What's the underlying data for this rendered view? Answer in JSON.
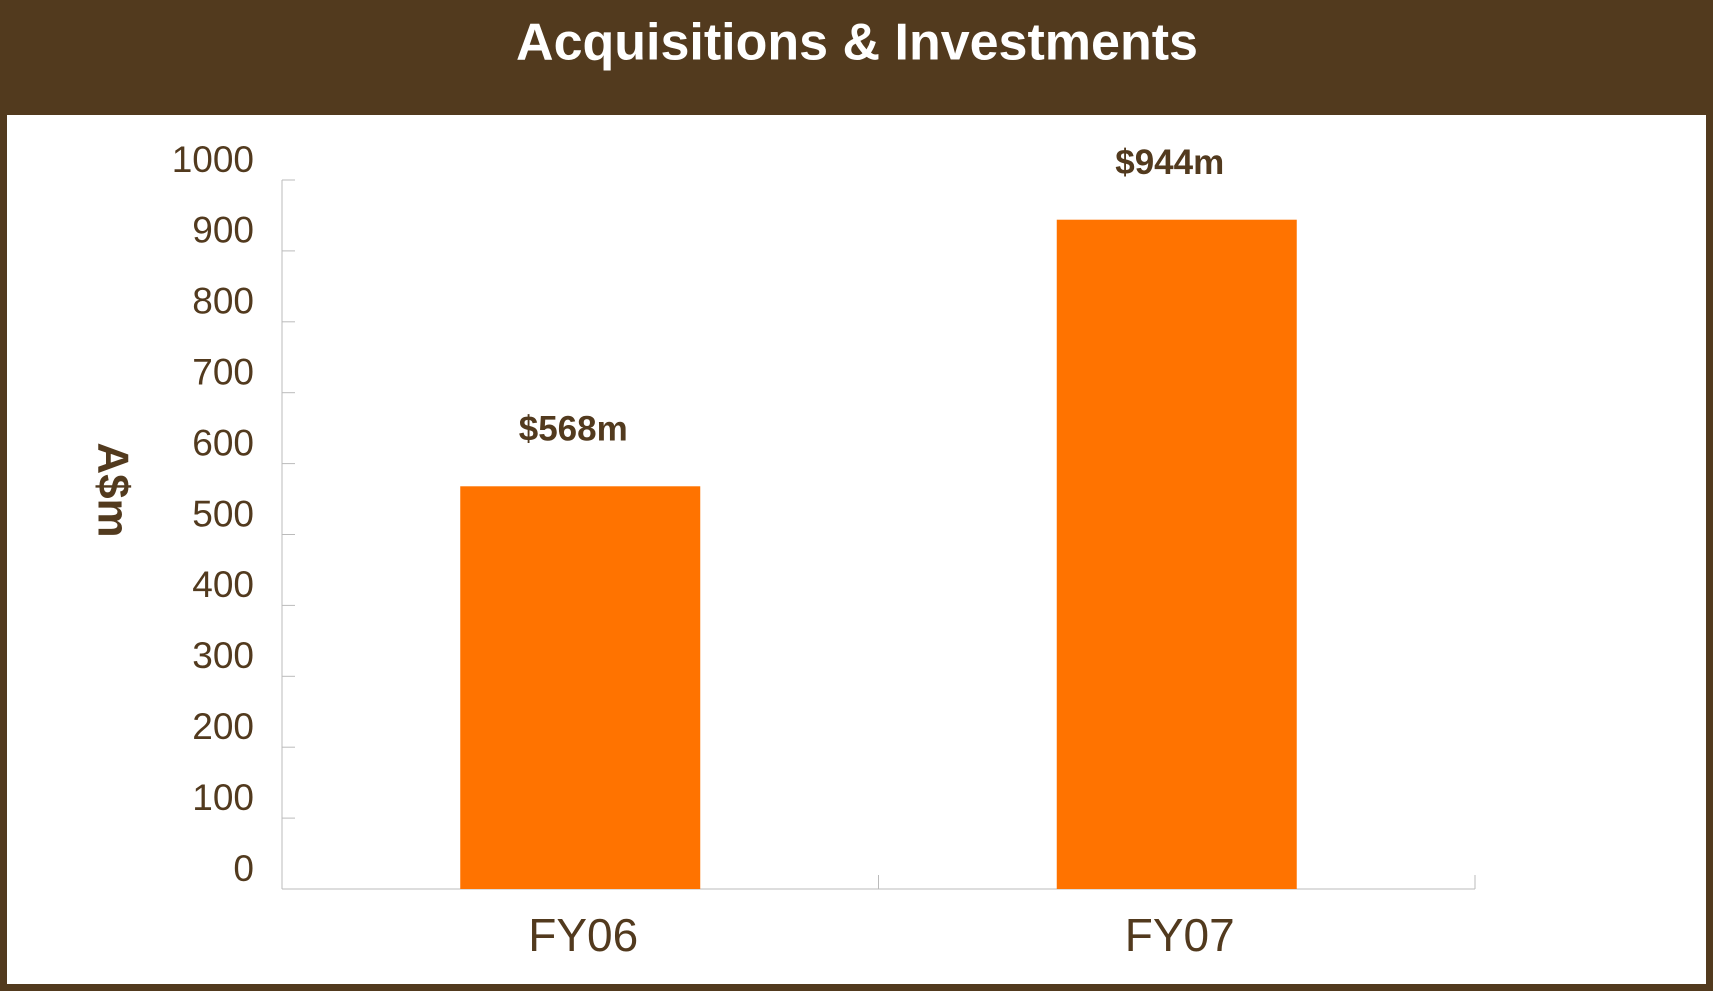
{
  "chart_data": {
    "type": "bar",
    "title": "Acquisitions & Investments",
    "y_label": "A$m",
    "categories": [
      "FY06",
      "FY07"
    ],
    "values": [
      568,
      944
    ],
    "value_labels": [
      "$568m",
      "$944m"
    ],
    "color": "#ff7300",
    "ylim": [
      0,
      1000
    ],
    "yticks": [
      0,
      100,
      200,
      300,
      400,
      500,
      600,
      700,
      800,
      900,
      1000
    ]
  }
}
